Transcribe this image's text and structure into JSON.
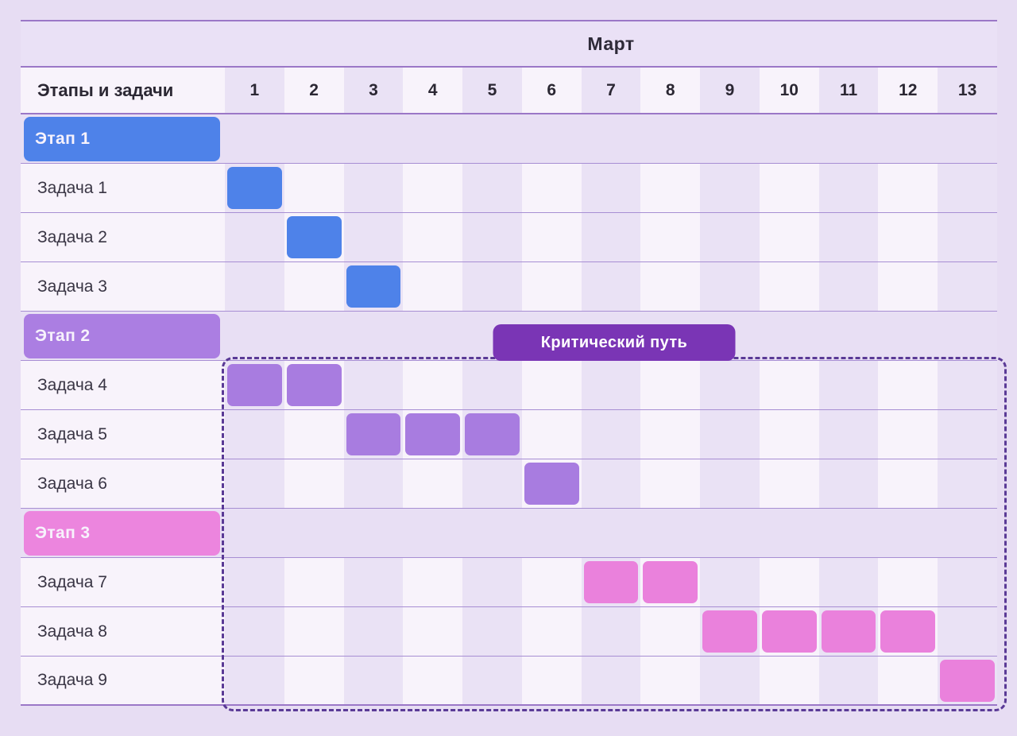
{
  "title": {
    "month": "Март"
  },
  "header": {
    "label": "Этапы и задачи",
    "days": [
      "1",
      "2",
      "3",
      "4",
      "5",
      "6",
      "7",
      "8",
      "9",
      "10",
      "11",
      "12",
      "13"
    ]
  },
  "rows": [
    {
      "type": "stage",
      "label": "Этап 1",
      "palette": "blue"
    },
    {
      "type": "task",
      "label": "Задача 1",
      "palette": "blue",
      "days": [
        1
      ]
    },
    {
      "type": "task",
      "label": "Задача 2",
      "palette": "blue",
      "days": [
        2
      ]
    },
    {
      "type": "task",
      "label": "Задача 3",
      "palette": "blue",
      "days": [
        3
      ]
    },
    {
      "type": "stage",
      "label": "Этап 2",
      "palette": "purple"
    },
    {
      "type": "task",
      "label": "Задача 4",
      "palette": "purple",
      "days": [
        1,
        2
      ]
    },
    {
      "type": "task",
      "label": "Задача 5",
      "palette": "purple",
      "days": [
        3,
        4,
        5
      ]
    },
    {
      "type": "task",
      "label": "Задача 6",
      "palette": "purple",
      "days": [
        6
      ]
    },
    {
      "type": "stage",
      "label": "Этап 3",
      "palette": "pink"
    },
    {
      "type": "task",
      "label": "Задача 7",
      "palette": "pink",
      "days": [
        7,
        8
      ]
    },
    {
      "type": "task",
      "label": "Задача 8",
      "palette": "pink",
      "days": [
        9,
        10,
        11,
        12
      ]
    },
    {
      "type": "task",
      "label": "Задача 9",
      "palette": "pink",
      "days": [
        13
      ]
    }
  ],
  "critical_path": {
    "label": "Критический путь",
    "covers_tasks": [
      "Задача 4",
      "Задача 5",
      "Задача 6",
      "Задача 7",
      "Задача 8",
      "Задача 9"
    ],
    "day_range": [
      1,
      13
    ]
  },
  "colors": {
    "blue": "#4e82e9",
    "blue_stage": "#4e82e9",
    "purple": "#a87ce0",
    "purple_stage": "#ab7ee2",
    "pink": "#ea81dc",
    "pink_stage": "#ec85de",
    "badge": "#7a35b5",
    "dashed_border": "#5a3a96",
    "dark_stripe": "#eae2f5",
    "light_stripe": "#f8f3fb",
    "stage_row_bg": "#e8dff4",
    "page_bg": "#e7ddf3",
    "grid_line": "#a78ed3"
  },
  "chart_data": {
    "type": "gantt",
    "title": "Март",
    "time_axis": {
      "unit": "day",
      "ticks": [
        1,
        2,
        3,
        4,
        5,
        6,
        7,
        8,
        9,
        10,
        11,
        12,
        13
      ]
    },
    "tasks": [
      {
        "name": "Этап 1",
        "kind": "stage",
        "group": 1,
        "color": "#4e82e9"
      },
      {
        "name": "Задача 1",
        "kind": "task",
        "group": 1,
        "start": 1,
        "end": 1,
        "color": "#4e82e9"
      },
      {
        "name": "Задача 2",
        "kind": "task",
        "group": 1,
        "start": 2,
        "end": 2,
        "color": "#4e82e9"
      },
      {
        "name": "Задача 3",
        "kind": "task",
        "group": 1,
        "start": 3,
        "end": 3,
        "color": "#4e82e9"
      },
      {
        "name": "Этап 2",
        "kind": "stage",
        "group": 2,
        "color": "#ab7ee2"
      },
      {
        "name": "Задача 4",
        "kind": "task",
        "group": 2,
        "start": 1,
        "end": 2,
        "color": "#a87ce0",
        "critical": true
      },
      {
        "name": "Задача 5",
        "kind": "task",
        "group": 2,
        "start": 3,
        "end": 5,
        "color": "#a87ce0",
        "critical": true
      },
      {
        "name": "Задача 6",
        "kind": "task",
        "group": 2,
        "start": 6,
        "end": 6,
        "color": "#a87ce0",
        "critical": true
      },
      {
        "name": "Этап 3",
        "kind": "stage",
        "group": 3,
        "color": "#ec85de"
      },
      {
        "name": "Задача 7",
        "kind": "task",
        "group": 3,
        "start": 7,
        "end": 8,
        "color": "#ea81dc",
        "critical": true
      },
      {
        "name": "Задача 8",
        "kind": "task",
        "group": 3,
        "start": 9,
        "end": 12,
        "color": "#ea81dc",
        "critical": true
      },
      {
        "name": "Задача 9",
        "kind": "task",
        "group": 3,
        "start": 13,
        "end": 13,
        "color": "#ea81dc",
        "critical": true
      }
    ],
    "annotations": [
      {
        "label": "Критический путь",
        "type": "dashed-outline",
        "rows": "Задача 4 — Задача 9",
        "days": [
          1,
          13
        ]
      }
    ],
    "legend_position": "none",
    "grid": "column-stripes"
  }
}
